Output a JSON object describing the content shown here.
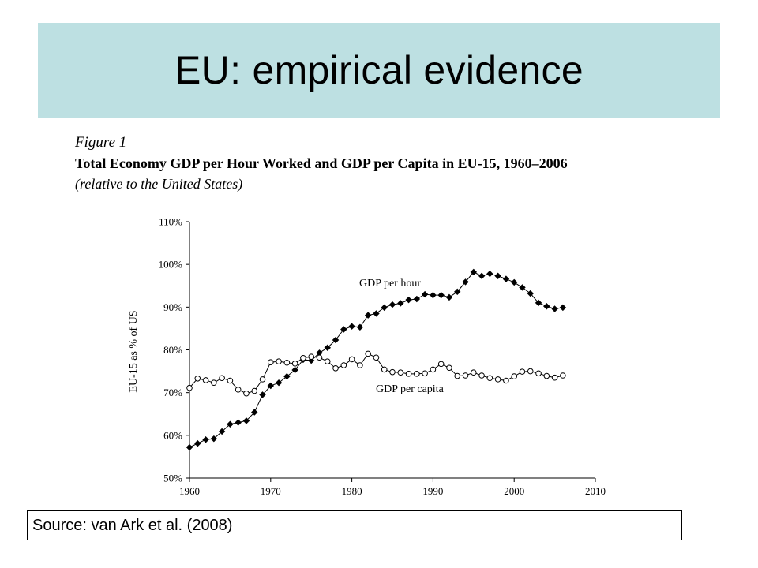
{
  "slide": {
    "title": "EU: empirical evidence",
    "source": "Source: van Ark et al. (2008)"
  },
  "figure": {
    "label": "Figure 1",
    "title": "Total Economy GDP per Hour Worked and GDP per Capita in EU-15, 1960–2006",
    "subtitle": "(relative to the United States)"
  },
  "chart_data": {
    "type": "line",
    "ylabel": "EU-15 as % of US",
    "xlabel": "",
    "xlim": [
      1960,
      2010
    ],
    "ylim": [
      50,
      110
    ],
    "x_ticks": [
      "1960",
      "1970",
      "1980",
      "1990",
      "2000",
      "2010"
    ],
    "y_ticks": [
      "50%",
      "60%",
      "70%",
      "80%",
      "90%",
      "100%",
      "110%"
    ],
    "grid": false,
    "legend": "inline labels",
    "x": [
      1960,
      1961,
      1962,
      1963,
      1964,
      1965,
      1966,
      1967,
      1968,
      1969,
      1970,
      1971,
      1972,
      1973,
      1974,
      1975,
      1976,
      1977,
      1978,
      1979,
      1980,
      1981,
      1982,
      1983,
      1984,
      1985,
      1986,
      1987,
      1988,
      1989,
      1990,
      1991,
      1992,
      1993,
      1994,
      1995,
      1996,
      1997,
      1998,
      1999,
      2000,
      2001,
      2002,
      2003,
      2004,
      2005,
      2006
    ],
    "series": [
      {
        "name": "GDP per hour",
        "marker": "filled-diamond",
        "values": [
          57.2,
          58.1,
          59.0,
          59.2,
          60.9,
          62.6,
          63.0,
          63.4,
          65.4,
          69.5,
          71.6,
          72.3,
          73.8,
          75.3,
          77.7,
          77.5,
          79.3,
          80.5,
          82.3,
          84.8,
          85.5,
          85.3,
          88.1,
          88.5,
          89.9,
          90.6,
          90.9,
          91.7,
          91.9,
          93.0,
          92.8,
          92.8,
          92.3,
          93.6,
          95.9,
          98.2,
          97.3,
          97.8,
          97.3,
          96.6,
          95.8,
          94.6,
          93.2,
          91.0,
          90.2,
          89.6,
          89.9
        ],
        "color": "#000000"
      },
      {
        "name": "GDP per capita",
        "marker": "open-circle",
        "values": [
          71.1,
          73.3,
          72.9,
          72.3,
          73.4,
          72.8,
          70.7,
          69.8,
          70.4,
          73.1,
          77.1,
          77.3,
          77.0,
          76.8,
          78.1,
          78.4,
          78.2,
          77.3,
          75.7,
          76.4,
          77.8,
          76.4,
          79.1,
          78.2,
          75.4,
          74.8,
          74.7,
          74.4,
          74.4,
          74.5,
          75.4,
          76.7,
          75.8,
          73.9,
          74.0,
          74.7,
          74.0,
          73.4,
          73.1,
          72.8,
          73.8,
          74.9,
          75.0,
          74.5,
          73.9,
          73.5,
          74.0
        ],
        "color": "#000000"
      }
    ]
  }
}
